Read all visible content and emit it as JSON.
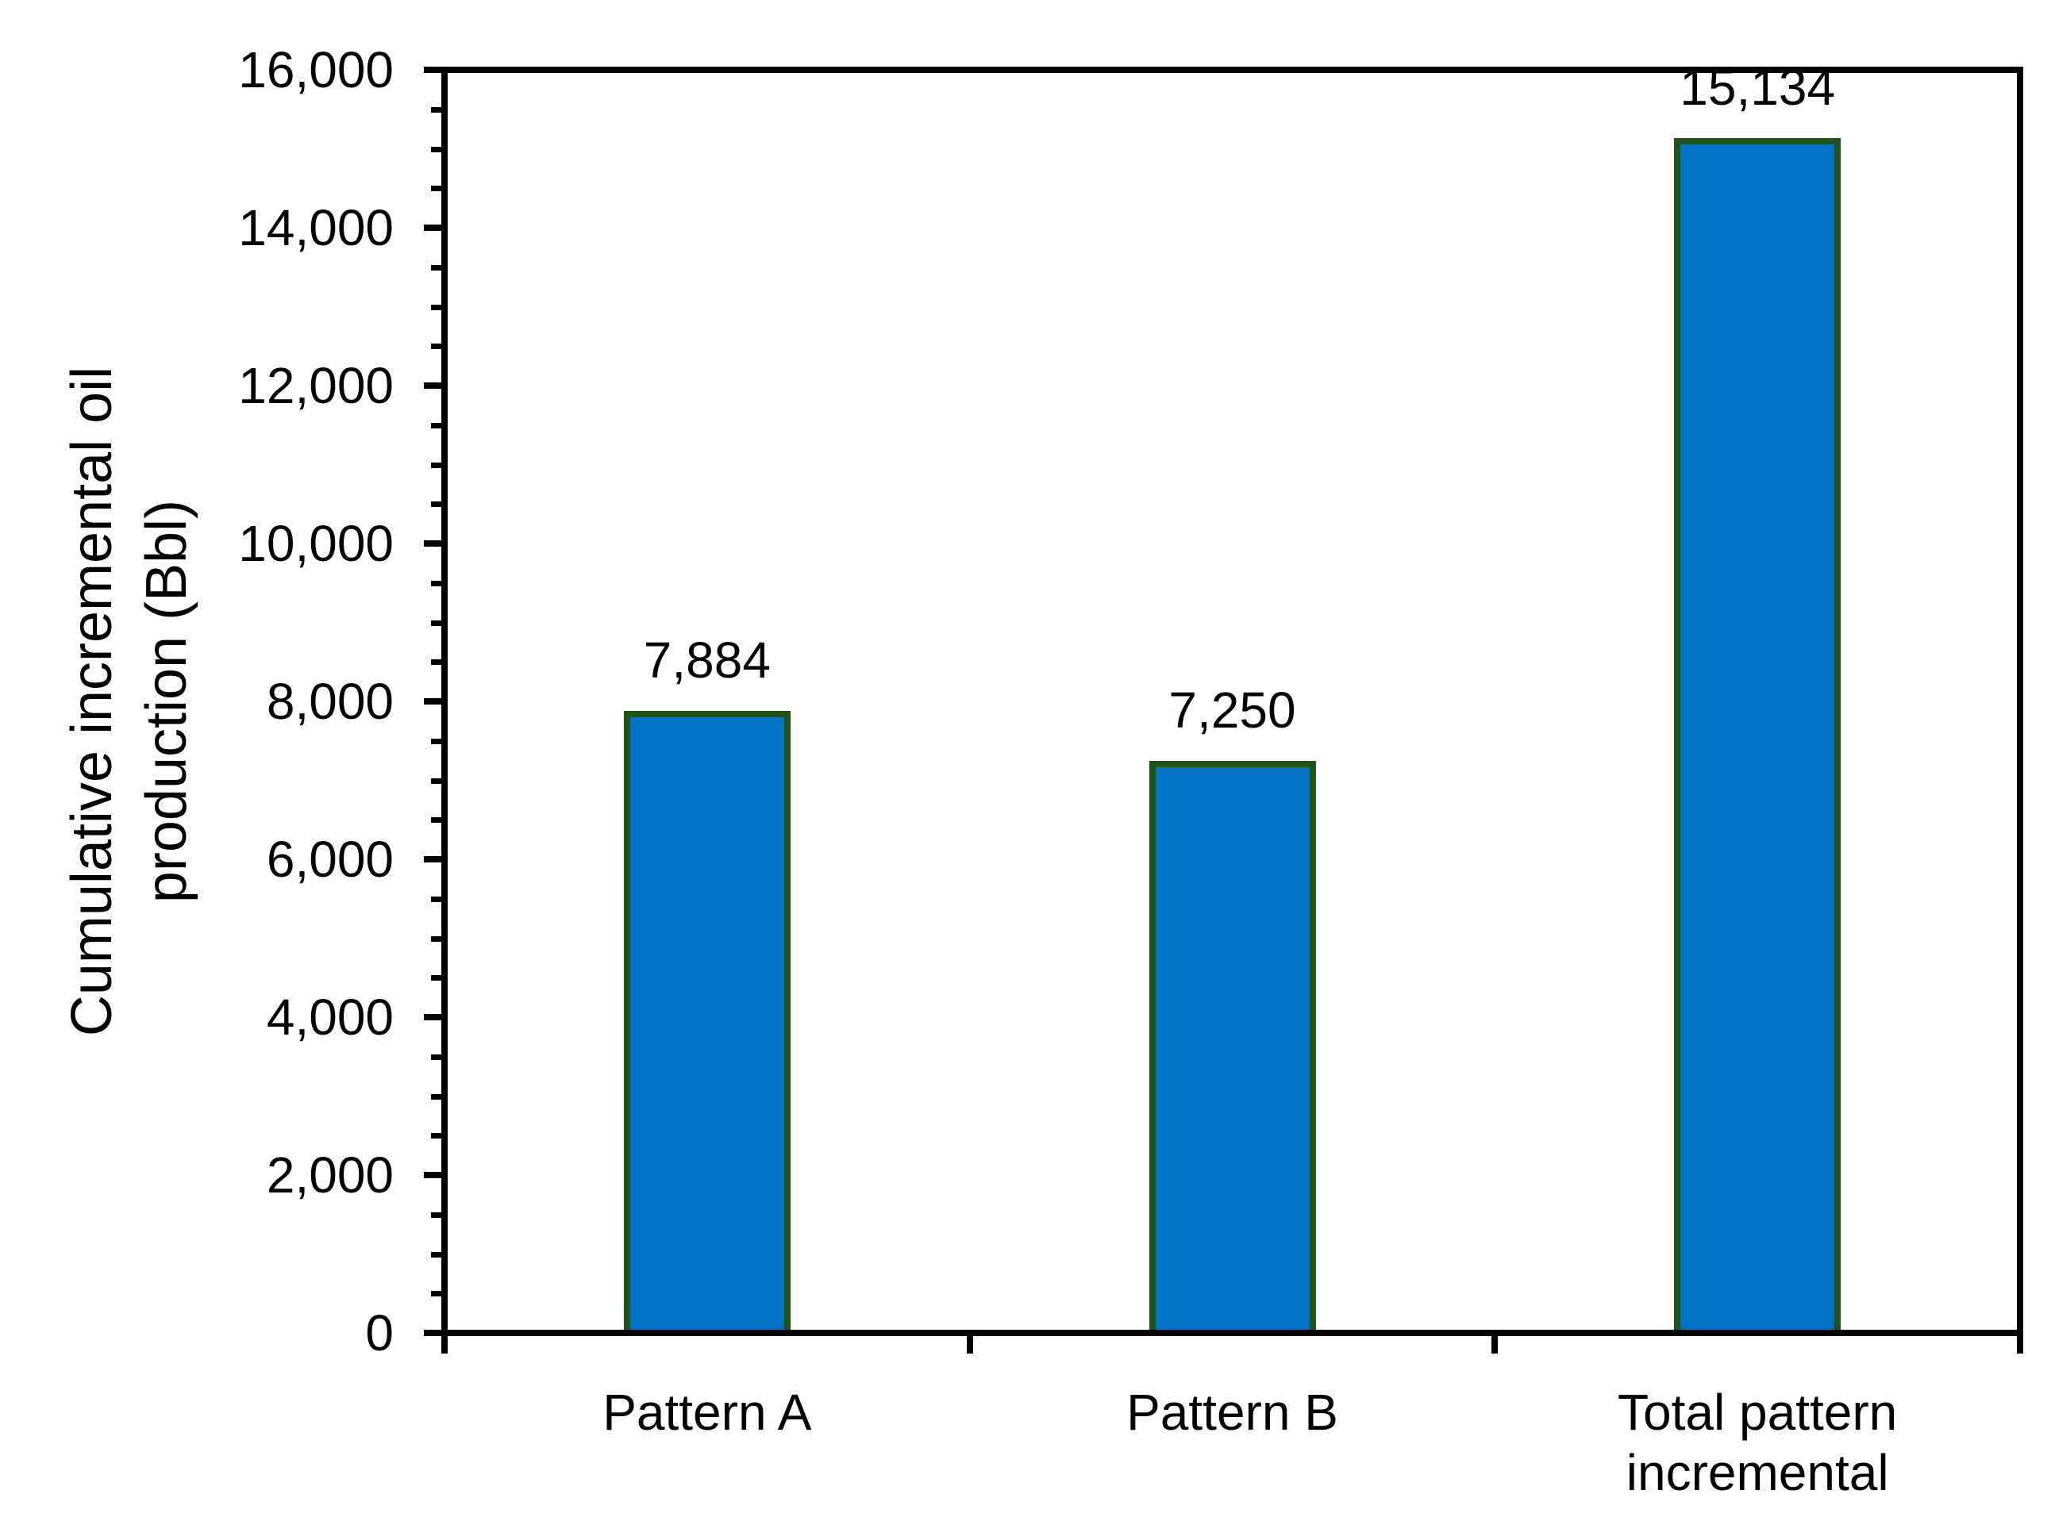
{
  "chart_data": {
    "type": "bar",
    "categories": [
      "Pattern A",
      "Pattern B",
      "Total pattern incremental"
    ],
    "values": [
      7884,
      7250,
      15134
    ],
    "value_labels": [
      "7,884",
      "7,250",
      "15,134"
    ],
    "title": "",
    "xlabel": "",
    "ylabel": "Cumulative incremental oil production (Bbl)",
    "ylabel_lines": [
      "Cumulative incremental oil",
      "production (Bbl)"
    ],
    "ylim": [
      0,
      16000
    ],
    "y_major_step": 2000,
    "y_minor_step": 500,
    "y_tick_labels": [
      "0",
      "2,000",
      "4,000",
      "6,000",
      "8,000",
      "10,000",
      "12,000",
      "14,000",
      "16,000"
    ],
    "grid": false,
    "legend": false,
    "plot_border": true,
    "bar_fill_color": "#0272C6",
    "bar_border_color": "#1F5414",
    "axis_color": "#000000",
    "text_color": "#000000"
  }
}
